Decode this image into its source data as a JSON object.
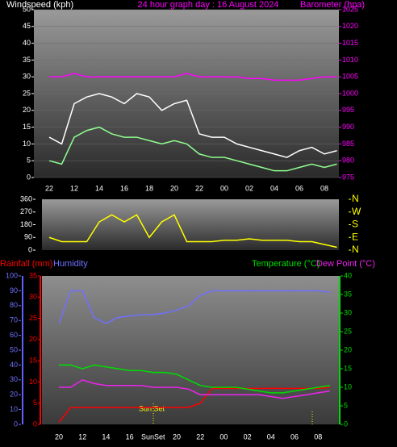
{
  "chart_data": [
    {
      "type": "line",
      "title": "24 hour graph day : 16 August 2024",
      "y_label": "Windspeed (kph)",
      "y2_label": "Barometer (hpa)",
      "categories": [
        "22",
        null,
        "12",
        null,
        "14",
        null,
        "16",
        null,
        "18",
        null,
        "20",
        null,
        "22",
        null,
        "00",
        null,
        "02",
        null,
        "04",
        null,
        "06",
        null,
        "08",
        null
      ],
      "ylim": [
        0,
        50
      ],
      "yticks": [
        0,
        5,
        10,
        15,
        20,
        25,
        30,
        35,
        40,
        45,
        50
      ],
      "y2lim": [
        975,
        1025
      ],
      "y2ticks": [
        975,
        980,
        985,
        990,
        995,
        1000,
        1005,
        1010,
        1015,
        1020,
        1025
      ],
      "grid": true,
      "series": [
        {
          "name": "Gust",
          "color": "#ffffff",
          "values": [
            12,
            10,
            22,
            24,
            25,
            24,
            22,
            25,
            24,
            20,
            22,
            23,
            13,
            12,
            12,
            10,
            9,
            8,
            7,
            6,
            8,
            9,
            7,
            8
          ]
        },
        {
          "name": "Average",
          "color": "#90ff90",
          "values": [
            5,
            4,
            12,
            14,
            15,
            13,
            12,
            12,
            11,
            10,
            11,
            10,
            7,
            6,
            6,
            5,
            4,
            3,
            2,
            2,
            3,
            4,
            3,
            4
          ]
        },
        {
          "name": "Barometer",
          "color": "#ff00ff",
          "axis": "y2",
          "values": [
            1005,
            1005,
            1006,
            1005,
            1005,
            1005,
            1005,
            1005,
            1005,
            1005,
            1005,
            1006,
            1005,
            1005,
            1005,
            1005,
            1004.5,
            1004.5,
            1004,
            1004,
            1004,
            1004.5,
            1005,
            1005
          ]
        }
      ]
    },
    {
      "type": "line",
      "categories": [
        "22",
        null,
        "12",
        null,
        "14",
        null,
        "16",
        null,
        "18",
        null,
        "20",
        null,
        "22",
        null,
        "00",
        null,
        "02",
        null,
        "04",
        null,
        "06",
        null,
        "08",
        null
      ],
      "ylim": [
        0,
        360
      ],
      "yticks": [
        0,
        90,
        180,
        270,
        360
      ],
      "y2lim": [
        0,
        360
      ],
      "y2ticks": [
        {
          "value": 360,
          "label": "N"
        },
        {
          "value": 270,
          "label": "W"
        },
        {
          "value": 180,
          "label": "S"
        },
        {
          "value": 90,
          "label": "E"
        },
        {
          "value": 0,
          "label": "N"
        }
      ],
      "series": [
        {
          "name": "Direction",
          "color": "#ffff00",
          "values": [
            90,
            60,
            60,
            60,
            200,
            250,
            200,
            250,
            90,
            200,
            250,
            60,
            60,
            60,
            70,
            70,
            80,
            70,
            70,
            70,
            60,
            60,
            40,
            20
          ]
        }
      ]
    },
    {
      "type": "line",
      "y3_label": "Rainfall (mm)",
      "y_label": "Humidity",
      "y2_label": "Temperature (°C)",
      "y2_label_b": "Dew Point (°C)",
      "annotation": "Sun Set",
      "categories": [
        "20",
        null,
        "12",
        null,
        "14",
        null,
        "16",
        null,
        "SunSet",
        null,
        "20",
        null,
        "22",
        null,
        "00",
        null,
        "02",
        null,
        "04",
        null,
        "06",
        null,
        "08",
        null
      ],
      "ylim": [
        0,
        100
      ],
      "yticks": [
        0,
        10,
        20,
        30,
        40,
        50,
        60,
        70,
        80,
        90,
        100
      ],
      "y3lim": [
        0,
        35
      ],
      "y3ticks": [
        0,
        5,
        10,
        15,
        20,
        25,
        30,
        35
      ],
      "y2lim": [
        0,
        40
      ],
      "y2ticks": [
        0,
        5,
        10,
        15,
        20,
        25,
        30,
        35,
        40
      ],
      "series": [
        {
          "name": "Humidity",
          "color": "#7070ff",
          "values": [
            68,
            90,
            90,
            72,
            68,
            72,
            73,
            74,
            74,
            75,
            77,
            80,
            87,
            90,
            90,
            90,
            90,
            90,
            90,
            90,
            90,
            90,
            90,
            89
          ]
        },
        {
          "name": "Rainfall",
          "color": "#ff0000",
          "axis": "y3",
          "values": [
            0.5,
            4,
            4,
            4,
            4,
            4,
            4,
            4,
            4,
            4,
            4,
            4,
            5,
            8.5,
            8.5,
            8.5,
            8.5,
            8.5,
            8.5,
            8.5,
            8.5,
            8.5,
            8.5,
            8.7
          ]
        },
        {
          "name": "Temperature",
          "color": "#00dd00",
          "axis": "y2",
          "values": [
            16,
            16,
            15,
            16,
            15.5,
            15,
            14.5,
            14.5,
            14,
            14,
            13.5,
            12,
            10.5,
            10,
            10,
            10,
            9.5,
            9,
            8.5,
            8.5,
            9,
            9.5,
            10,
            10.5
          ]
        },
        {
          "name": "Dew Point",
          "color": "#ee22ee",
          "axis": "y2",
          "values": [
            10,
            10,
            12,
            11,
            10.5,
            10.5,
            10.5,
            10.5,
            10,
            10,
            10,
            9.5,
            8,
            8,
            8,
            8,
            8,
            8,
            7.5,
            7,
            7.5,
            8,
            8.5,
            9
          ]
        }
      ]
    }
  ]
}
